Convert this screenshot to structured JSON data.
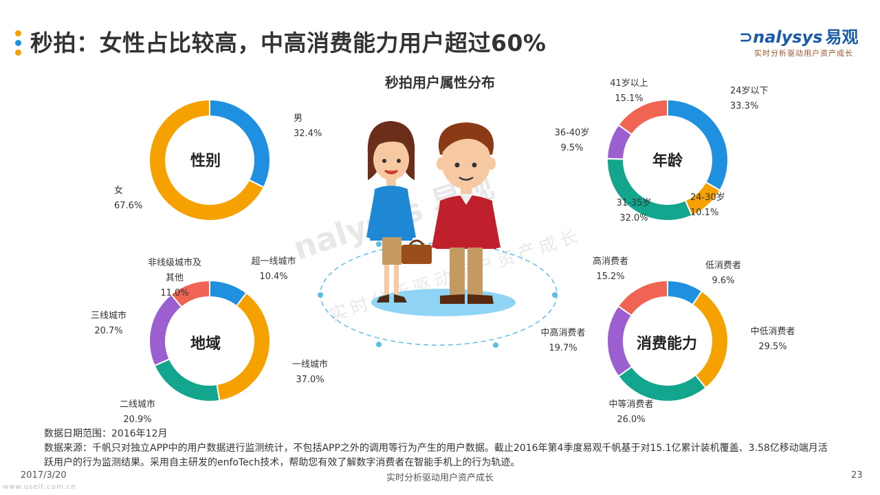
{
  "header": {
    "title": "秒拍：女性占比较高，中高消费能力用户超过60%",
    "dot_colors": [
      "#f5a200",
      "#1f8fe0",
      "#f5a200"
    ]
  },
  "logo": {
    "main_en": "nalysys",
    "main_cn": "易观",
    "sub": "实时分析驱动用户资产成长"
  },
  "watermark": {
    "main": "nalysys 易观",
    "sub": "实时分析驱动用户资产成长"
  },
  "chart_data": [
    {
      "type": "pie",
      "title": "性别",
      "slices": [
        {
          "label": "男",
          "value": 32.4,
          "value_text": "32.4%",
          "color": "#1f8fe0"
        },
        {
          "label": "女",
          "value": 67.6,
          "value_text": "67.6%",
          "color": "#f5a200"
        }
      ]
    },
    {
      "type": "pie",
      "title": "年龄",
      "slices": [
        {
          "label": "24岁以下",
          "value": 33.3,
          "value_text": "33.3%",
          "color": "#1f8fe0"
        },
        {
          "label": "24-30岁",
          "value": 10.1,
          "value_text": "10.1%",
          "color": "#f5a200"
        },
        {
          "label": "31-35岁",
          "value": 32.0,
          "value_text": "32.0%",
          "color": "#14a58e"
        },
        {
          "label": "36-40岁",
          "value": 9.5,
          "value_text": "9.5%",
          "color": "#9b5fd0"
        },
        {
          "label": "41岁以上",
          "value": 15.1,
          "value_text": "15.1%",
          "color": "#ef6452"
        }
      ]
    },
    {
      "type": "pie",
      "title": "地域",
      "slices": [
        {
          "label": "超一线城市",
          "value": 10.4,
          "value_text": "10.4%",
          "color": "#1f8fe0"
        },
        {
          "label": "一线城市",
          "value": 37.0,
          "value_text": "37.0%",
          "color": "#f5a200"
        },
        {
          "label": "二线城市",
          "value": 20.9,
          "value_text": "20.9%",
          "color": "#14a58e"
        },
        {
          "label": "三线城市",
          "value": 20.7,
          "value_text": "20.7%",
          "color": "#9b5fd0"
        },
        {
          "label": "非线级城市及其他",
          "label_line1": "非线级城市及",
          "label_line2": "其他",
          "value": 11.0,
          "value_text": "11.0%",
          "color": "#ef6452"
        }
      ]
    },
    {
      "type": "pie",
      "title": "消费能力",
      "slices": [
        {
          "label": "低消费者",
          "value": 9.6,
          "value_text": "9.6%",
          "color": "#1f8fe0"
        },
        {
          "label": "中低消费者",
          "value": 29.5,
          "value_text": "29.5%",
          "color": "#f5a200"
        },
        {
          "label": "中等消费者",
          "value": 26.0,
          "value_text": "26.0%",
          "color": "#14a58e"
        },
        {
          "label": "中高消费者",
          "value": 19.7,
          "value_text": "19.7%",
          "color": "#9b5fd0"
        },
        {
          "label": "高消费者",
          "value": 15.2,
          "value_text": "15.2%",
          "color": "#ef6452"
        }
      ]
    }
  ],
  "subtitle": "秒拍用户属性分布",
  "notes": {
    "date_range": "数据日期范围：2016年12月",
    "source": "数据来源：千帆只对独立APP中的用户数据进行监测统计，不包括APP之外的调用等行为产生的用户数据。截止2016年第4季度易观千帆基于对15.1亿累计装机覆盖、3.58亿移动端月活跃用户的行为监测结果。采用自主研发的enfoTech技术，帮助您有效了解数字消费者在智能手机上的行为轨迹。"
  },
  "footer": {
    "date": "2017/3/20",
    "center": "实时分析驱动用户资产成长",
    "page": "23",
    "url": "www.useit.com.cn"
  }
}
